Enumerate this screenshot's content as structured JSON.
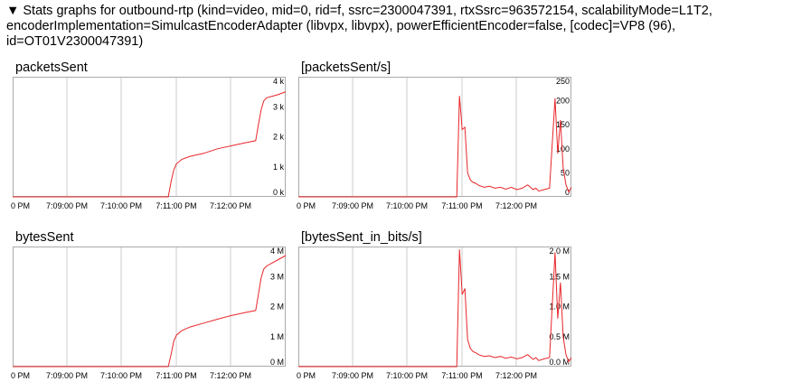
{
  "header": {
    "toggle_glyph": "▼",
    "text": "Stats graphs for outbound-rtp (kind=video, mid=0, rid=f, ssrc=2300047391, rtxSsrc=963572154, scalabilityMode=L1T2, encoderImplementation=SimulcastEncoderAdapter (libvpx, libvpx), powerEfficientEncoder=false, [codec]=VP8 (96), id=OT01V2300047391)"
  },
  "colors": {
    "line": "#e8262a",
    "grid": "#cccccc",
    "frame": "#aaaaaa"
  },
  "chart_data": [
    {
      "type": "line",
      "title": "packetsSent",
      "x_ticks": [
        "0 PM",
        "7:09:00 PM",
        "7:10:00 PM",
        "7:11:00 PM",
        "7:12:00 PM"
      ],
      "y_ticks": [
        "0 k",
        "1 k",
        "2 k",
        "3 k",
        "4 k"
      ],
      "ylim": [
        0,
        4000
      ],
      "xlim": [
        0,
        100
      ],
      "x": [
        0,
        57,
        58,
        59,
        60,
        62,
        65,
        70,
        75,
        80,
        85,
        89,
        90,
        91,
        92,
        93,
        95,
        97,
        100
      ],
      "y": [
        0,
        0,
        500,
        900,
        1100,
        1250,
        1350,
        1450,
        1600,
        1700,
        1800,
        1870,
        2400,
        2900,
        3200,
        3300,
        3350,
        3400,
        3500
      ]
    },
    {
      "type": "line",
      "title": "[packetsSent/s]",
      "x_ticks": [
        "0 PM",
        "7:09:00 PM",
        "7:10:00 PM",
        "7:11:00 PM",
        "7:12:00 PM"
      ],
      "y_ticks": [
        "0",
        "50",
        "100",
        "150",
        "200",
        "250"
      ],
      "ylim": [
        0,
        250
      ],
      "xlim": [
        0,
        100
      ],
      "x": [
        0,
        58,
        59,
        60,
        61,
        62,
        63,
        64,
        65,
        66,
        68,
        70,
        72,
        74,
        76,
        78,
        80,
        82,
        84,
        86,
        87,
        88,
        90,
        92,
        94,
        95,
        96,
        97,
        98,
        99,
        100
      ],
      "y": [
        0,
        0,
        210,
        140,
        145,
        50,
        35,
        30,
        28,
        24,
        20,
        22,
        18,
        20,
        16,
        20,
        15,
        18,
        25,
        15,
        18,
        12,
        15,
        18,
        205,
        90,
        160,
        60,
        25,
        10,
        20
      ]
    },
    {
      "type": "line",
      "title": "bytesSent",
      "x_ticks": [
        "0 PM",
        "7:09:00 PM",
        "7:10:00 PM",
        "7:11:00 PM",
        "7:12:00 PM"
      ],
      "y_ticks": [
        "0 M",
        "1 M",
        "2 M",
        "3 M",
        "4 M"
      ],
      "ylim": [
        0,
        4000000
      ],
      "xlim": [
        0,
        100
      ],
      "x": [
        0,
        57,
        58,
        59,
        60,
        62,
        65,
        70,
        75,
        80,
        85,
        89,
        90,
        91,
        92,
        93,
        95,
        97,
        100
      ],
      "y": [
        0,
        0,
        400000,
        850000,
        1050000,
        1200000,
        1320000,
        1450000,
        1580000,
        1700000,
        1800000,
        1870000,
        2400000,
        2950000,
        3250000,
        3350000,
        3450000,
        3550000,
        3700000
      ]
    },
    {
      "type": "line",
      "title": "[bytesSent_in_bits/s]",
      "x_ticks": [
        "0 PM",
        "7:09:00 PM",
        "7:10:00 PM",
        "7:11:00 PM",
        "7:12:00 PM"
      ],
      "y_ticks": [
        "0.0 M",
        "0.5 M",
        "1.0 M",
        "1.5 M",
        "2.0 M"
      ],
      "ylim": [
        0,
        2000000
      ],
      "xlim": [
        0,
        100
      ],
      "x": [
        0,
        58,
        59,
        60,
        61,
        62,
        63,
        64,
        65,
        66,
        68,
        70,
        72,
        74,
        76,
        78,
        80,
        82,
        84,
        86,
        87,
        88,
        90,
        92,
        94,
        95,
        96,
        97,
        98,
        99,
        100
      ],
      "y": [
        0,
        0,
        1950000,
        1200000,
        1300000,
        450000,
        300000,
        250000,
        230000,
        200000,
        170000,
        180000,
        150000,
        170000,
        140000,
        160000,
        130000,
        150000,
        200000,
        120000,
        150000,
        100000,
        130000,
        150000,
        1900000,
        800000,
        1400000,
        500000,
        200000,
        80000,
        150000
      ]
    }
  ]
}
